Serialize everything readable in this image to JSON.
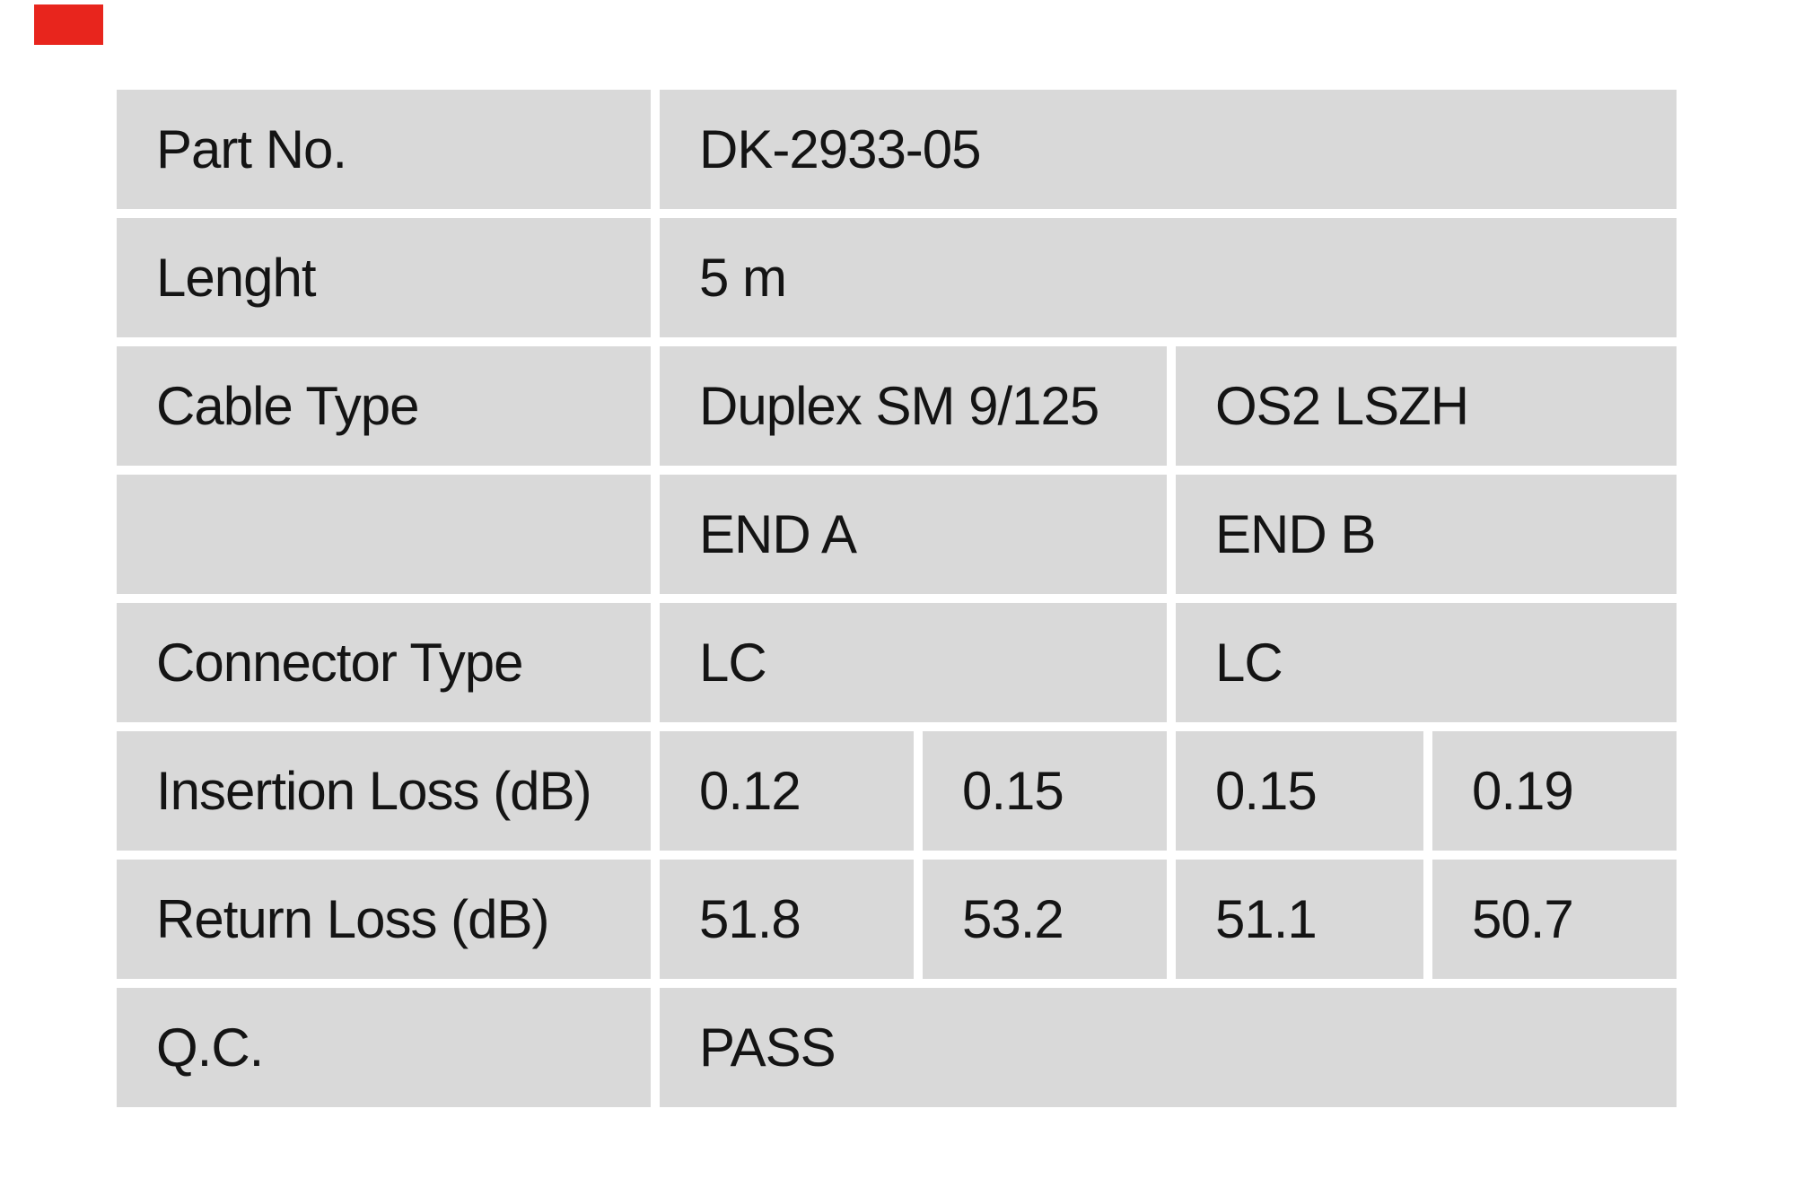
{
  "page": {
    "background_color": "#ffffff",
    "red_mark_color": "#e8251d"
  },
  "table": {
    "cell_background_color": "#d9d9d9",
    "text_color": "#141414",
    "rows": [
      {
        "label": "Part No.",
        "values": [
          {
            "text": "DK-2933-05"
          }
        ]
      },
      {
        "label": "Lenght",
        "values": [
          {
            "text": "5 m"
          }
        ]
      },
      {
        "label": "Cable Type",
        "values": [
          {
            "text": "Duplex SM 9/125"
          },
          {
            "text": "OS2 LSZH"
          }
        ]
      },
      {
        "label": "",
        "values": [
          {
            "text": "END A"
          },
          {
            "text": "END B"
          }
        ]
      },
      {
        "label": "Connector Type",
        "values": [
          {
            "text": "LC"
          },
          {
            "text": "LC"
          }
        ]
      },
      {
        "label": "Insertion Loss (dB)",
        "values": [
          {
            "text": "0.12"
          },
          {
            "text": "0.15"
          },
          {
            "text": "0.15"
          },
          {
            "text": "0.19"
          }
        ]
      },
      {
        "label": "Return Loss (dB)",
        "values": [
          {
            "text": "51.8"
          },
          {
            "text": "53.2"
          },
          {
            "text": "51.1"
          },
          {
            "text": "50.7"
          }
        ]
      },
      {
        "label": "Q.C.",
        "values": [
          {
            "text": "PASS"
          }
        ]
      }
    ]
  }
}
